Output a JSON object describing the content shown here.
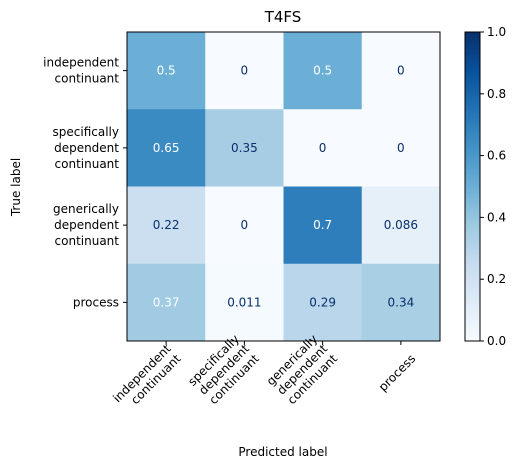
{
  "chart_data": {
    "type": "heatmap",
    "title": "T4FS",
    "xlabel": "Predicted label",
    "ylabel": "True label",
    "x_categories": [
      [
        "independent",
        "continuant"
      ],
      [
        "specifically",
        "dependent",
        "continuant"
      ],
      [
        "generically",
        "dependent",
        "continuant"
      ],
      [
        "process"
      ]
    ],
    "y_categories": [
      [
        "independent",
        "continuant"
      ],
      [
        "specifically",
        "dependent",
        "continuant"
      ],
      [
        "generically",
        "dependent",
        "continuant"
      ],
      [
        "process"
      ]
    ],
    "values": [
      [
        0.5,
        0,
        0.5,
        0
      ],
      [
        0.65,
        0.35,
        0,
        0
      ],
      [
        0.22,
        0,
        0.7,
        0.086
      ],
      [
        0.37,
        0.011,
        0.29,
        0.34
      ]
    ],
    "value_labels": [
      [
        "0.5",
        "0",
        "0.5",
        "0"
      ],
      [
        "0.65",
        "0.35",
        "0",
        "0"
      ],
      [
        "0.22",
        "0",
        "0.7",
        "0.086"
      ],
      [
        "0.37",
        "0.011",
        "0.29",
        "0.34"
      ]
    ],
    "colorbar": {
      "min": 0.0,
      "max": 1.0,
      "ticks": [
        "0.0",
        "0.2",
        "0.4",
        "0.6",
        "0.8",
        "1.0"
      ],
      "colormap": "Blues"
    },
    "colors": {
      "light_text": "#ffffff",
      "dark_text": "#08306b"
    }
  }
}
